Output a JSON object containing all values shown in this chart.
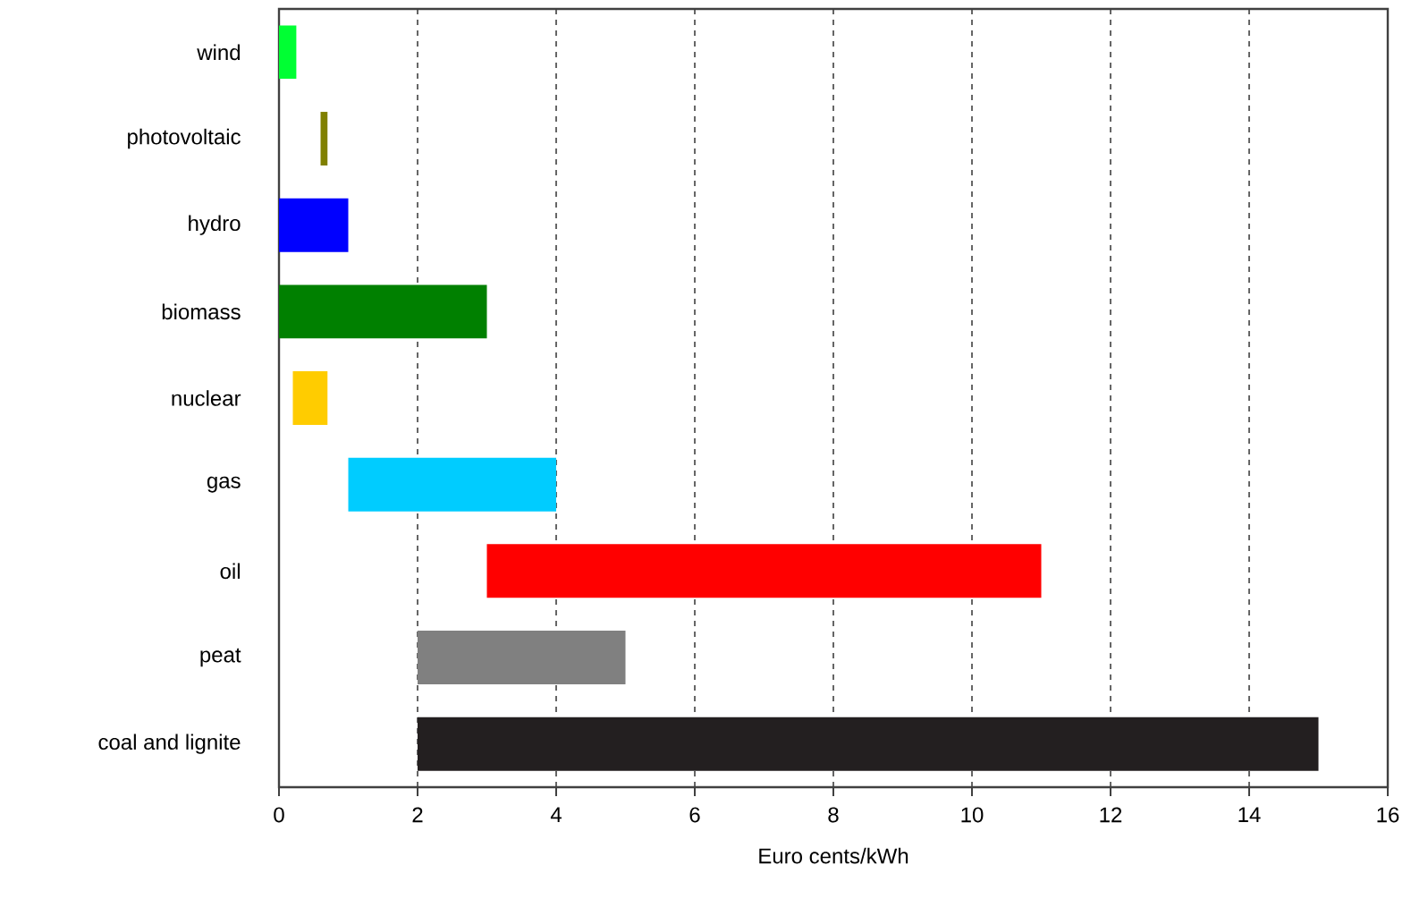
{
  "chart_data": {
    "type": "bar",
    "orientation": "horizontal",
    "xlabel": "Euro cents/kWh",
    "categories": [
      "wind",
      "photovoltaic",
      "hydro",
      "biomass",
      "nuclear",
      "gas",
      "oil",
      "peat",
      "coal and lignite"
    ],
    "base": [
      0,
      0.6,
      0,
      0,
      0.2,
      1,
      3,
      2,
      2
    ],
    "values": [
      0.25,
      0.1,
      1,
      3,
      0.5,
      3,
      8,
      3,
      13
    ],
    "colors": [
      "#00ff33",
      "#808000",
      "#0000ff",
      "#008000",
      "#ffcc00",
      "#00ccff",
      "#ff0000",
      "#808080",
      "#231f20"
    ],
    "xlim": [
      0,
      16
    ],
    "xticks": [
      0,
      2,
      4,
      6,
      8,
      10,
      12,
      14,
      16
    ],
    "grid": "x"
  }
}
